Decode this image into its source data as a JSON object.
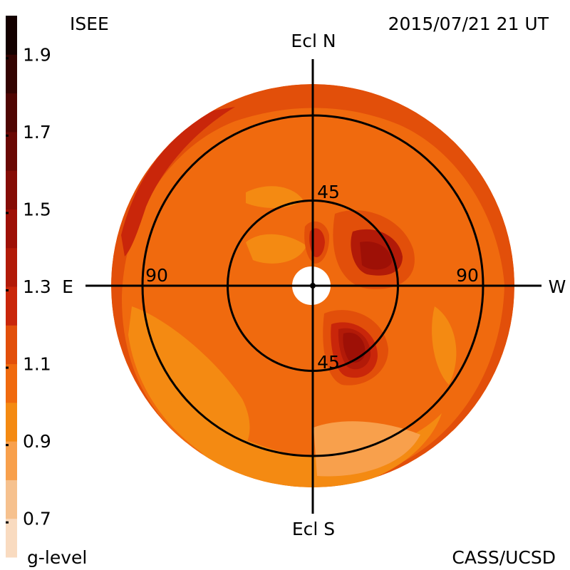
{
  "header": {
    "source": "ISEE",
    "datetime": "2015/07/21 21 UT"
  },
  "footer": {
    "legend_title": "g-level",
    "credit": "CASS/UCSD"
  },
  "colors": {
    "background": "#ffffff",
    "axis": "#000000",
    "hole": "#ffffff"
  },
  "chart_data": {
    "type": "heatmap",
    "subtype": "polar sky map",
    "title": "",
    "colorbar": {
      "label": "g-level",
      "ticks": [
        "1.9",
        "1.7",
        "1.5",
        "1.3",
        "1.1",
        "0.9",
        "0.7"
      ],
      "range": [
        0.6,
        2.0
      ],
      "bands": [
        {
          "min": 0.6,
          "max": 0.7,
          "color": "#f9dbc0"
        },
        {
          "min": 0.7,
          "max": 0.8,
          "color": "#f6c18e"
        },
        {
          "min": 0.8,
          "max": 0.9,
          "color": "#f8a04c"
        },
        {
          "min": 0.9,
          "max": 1.0,
          "color": "#f48a12"
        },
        {
          "min": 1.0,
          "max": 1.1,
          "color": "#f06a0e"
        },
        {
          "min": 1.1,
          "max": 1.2,
          "color": "#e24f0a"
        },
        {
          "min": 1.2,
          "max": 1.3,
          "color": "#c9260a"
        },
        {
          "min": 1.3,
          "max": 1.4,
          "color": "#b21a08"
        },
        {
          "min": 1.4,
          "max": 1.5,
          "color": "#9e1006"
        },
        {
          "min": 1.5,
          "max": 1.6,
          "color": "#850c05"
        },
        {
          "min": 1.6,
          "max": 1.7,
          "color": "#6a0804"
        },
        {
          "min": 1.7,
          "max": 1.8,
          "color": "#4f0502"
        },
        {
          "min": 1.8,
          "max": 1.9,
          "color": "#330301"
        },
        {
          "min": 1.9,
          "max": 2.0,
          "color": "#140100"
        }
      ]
    },
    "axes": {
      "top": "Ecl N",
      "bottom": "Ecl S",
      "left": "E",
      "right": "W"
    },
    "rings": [
      {
        "elongation": 45,
        "label_top": "45",
        "label_bottom": "45"
      },
      {
        "elongation": 90,
        "label_left": "90",
        "label_right": "90"
      }
    ],
    "max_elongation": 120,
    "background_level": 1.05,
    "regions": [
      {
        "name": "outer rim shell",
        "level": 1.15
      },
      {
        "name": "north-east rim",
        "level": 1.25
      },
      {
        "name": "south-west zone",
        "level": 0.95
      },
      {
        "name": "south annulus",
        "level": 0.95
      },
      {
        "name": "south light patch",
        "level": 0.85
      },
      {
        "name": "east inner patch",
        "level": 0.95
      },
      {
        "name": "north-west light patch",
        "level": 0.95
      },
      {
        "name": "north inner light patch",
        "level": 0.95
      },
      {
        "name": "north-west inner enhancement",
        "level": 1.15
      },
      {
        "name": "north-west inner core",
        "level": 1.3
      },
      {
        "name": "north-west inner peak",
        "level": 1.4
      },
      {
        "name": "south-west inner enhancement",
        "level": 1.15
      },
      {
        "name": "south-west inner ring",
        "level": 1.25
      },
      {
        "name": "south-west inner core",
        "level": 1.35
      },
      {
        "name": "south-west inner peak",
        "level": 1.45
      },
      {
        "name": "north inner stripe",
        "level": 1.15
      },
      {
        "name": "north inner stripe core",
        "level": 1.25
      }
    ]
  }
}
